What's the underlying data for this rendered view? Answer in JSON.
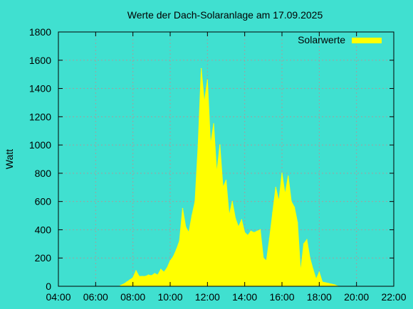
{
  "chart_data": {
    "type": "area",
    "title": "Werte der Dach-Solaranlage am 17.09.2025",
    "xlabel": "",
    "ylabel": "Watt",
    "xlim": [
      "04:00",
      "22:00"
    ],
    "ylim": [
      0,
      1800
    ],
    "x_ticks": [
      "04:00",
      "06:00",
      "08:00",
      "10:00",
      "12:00",
      "14:00",
      "16:00",
      "18:00",
      "20:00",
      "22:00"
    ],
    "y_ticks": [
      "0",
      "200",
      "400",
      "600",
      "800",
      "1000",
      "1200",
      "1400",
      "1600",
      "1800"
    ],
    "grid": true,
    "legend_position": "top-right",
    "background": "#40E0D0",
    "series": [
      {
        "name": "Solarwerte",
        "color": "#FFFF00",
        "x": [
          "07:20",
          "07:30",
          "07:40",
          "07:50",
          "08:00",
          "08:10",
          "08:20",
          "08:30",
          "08:40",
          "08:50",
          "09:00",
          "09:10",
          "09:20",
          "09:30",
          "09:40",
          "09:50",
          "10:00",
          "10:10",
          "10:20",
          "10:30",
          "10:40",
          "10:50",
          "11:00",
          "11:10",
          "11:20",
          "11:30",
          "11:40",
          "11:50",
          "12:00",
          "12:10",
          "12:20",
          "12:30",
          "12:40",
          "12:50",
          "13:00",
          "13:10",
          "13:20",
          "13:30",
          "13:40",
          "13:50",
          "14:00",
          "14:10",
          "14:20",
          "14:30",
          "14:40",
          "14:50",
          "15:00",
          "15:10",
          "15:20",
          "15:30",
          "15:40",
          "15:50",
          "16:00",
          "16:10",
          "16:20",
          "16:30",
          "16:40",
          "16:50",
          "17:00",
          "17:10",
          "17:20",
          "17:30",
          "17:40",
          "17:50",
          "18:00",
          "18:10",
          "18:20",
          "18:30",
          "18:40",
          "18:50",
          "19:00"
        ],
        "values": [
          5,
          15,
          30,
          45,
          60,
          110,
          70,
          70,
          70,
          80,
          75,
          90,
          80,
          120,
          100,
          130,
          180,
          210,
          260,
          320,
          550,
          420,
          380,
          500,
          600,
          1000,
          1540,
          1300,
          1460,
          1000,
          1150,
          800,
          1000,
          700,
          750,
          500,
          600,
          480,
          420,
          470,
          380,
          360,
          390,
          380,
          390,
          400,
          200,
          180,
          340,
          520,
          700,
          600,
          800,
          650,
          780,
          600,
          560,
          450,
          100,
          300,
          330,
          200,
          120,
          50,
          100,
          30,
          25,
          20,
          15,
          10,
          0
        ]
      }
    ]
  }
}
